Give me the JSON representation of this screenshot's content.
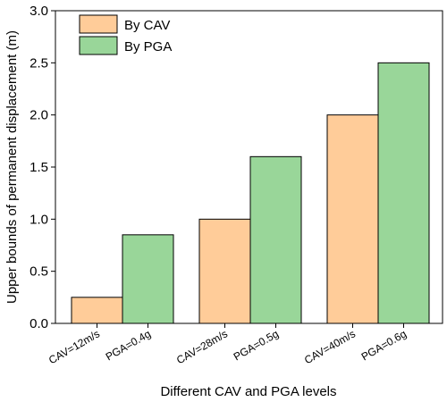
{
  "chart_data": {
    "type": "bar",
    "x_label": "Different CAV and PGA levels",
    "y_label": "Upper bounds of permanent displacement (m)",
    "categories": [
      "CAV=12m/s",
      "PGA=0.4g",
      "CAV=28m/s",
      "PGA=0.5g",
      "CAV=40m/s",
      "PGA=0.6g"
    ],
    "series": [
      {
        "name": "By CAV",
        "color": "#ffcc99",
        "values": [
          0.25,
          null,
          1.0,
          null,
          2.0,
          null
        ]
      },
      {
        "name": "By PGA",
        "color": "#99d699",
        "values": [
          null,
          0.85,
          null,
          1.6,
          null,
          2.5
        ]
      }
    ],
    "ylim": [
      0,
      3.0
    ],
    "yticks": [
      {
        "value": 0,
        "label": "0.0"
      },
      {
        "value": 0.5,
        "label": "0.5"
      },
      {
        "value": 1.0,
        "label": "1.0"
      },
      {
        "value": 1.5,
        "label": "1.5"
      },
      {
        "value": 2.0,
        "label": "2.0"
      },
      {
        "value": 2.5,
        "label": "2.5"
      },
      {
        "value": 3.0,
        "label": "3.0"
      }
    ],
    "legend": "upper left"
  }
}
